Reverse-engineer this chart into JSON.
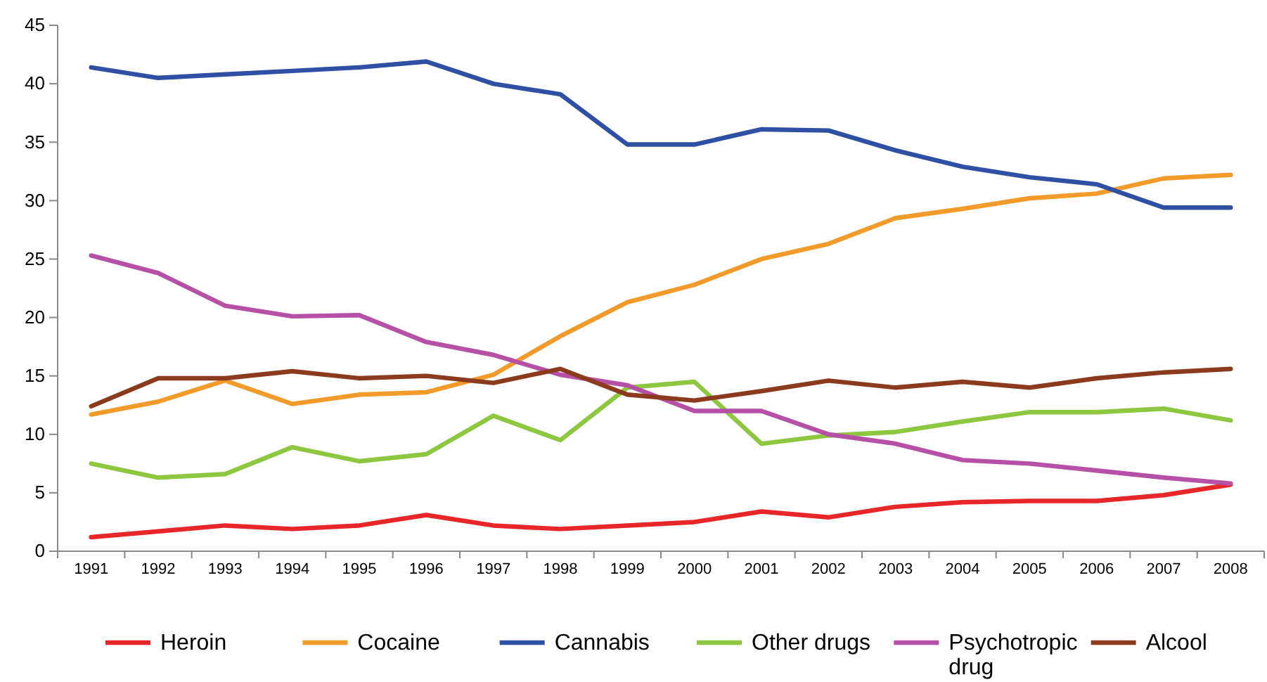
{
  "chart_data": {
    "type": "line",
    "categories": [
      "1991",
      "1992",
      "1993",
      "1994",
      "1995",
      "1996",
      "1997",
      "1998",
      "1999",
      "2000",
      "2001",
      "2002",
      "2003",
      "2004",
      "2005",
      "2006",
      "2007",
      "2008"
    ],
    "ylim": [
      0,
      45
    ],
    "yticks": [
      0,
      5,
      10,
      15,
      20,
      25,
      30,
      35,
      40,
      45
    ],
    "grid": false,
    "legend": "bottom",
    "marker": "none",
    "line_style": "solid",
    "series": [
      {
        "name": "Heroin",
        "color": "#e8262a",
        "values": [
          1.2,
          1.7,
          2.2,
          1.9,
          2.2,
          3.1,
          2.2,
          1.9,
          2.2,
          2.5,
          3.4,
          2.9,
          3.8,
          4.2,
          4.3,
          4.3,
          4.8,
          5.7
        ]
      },
      {
        "name": "Cocaine",
        "color": "#f39b2a",
        "values": [
          11.7,
          12.8,
          14.6,
          12.6,
          13.4,
          13.6,
          15.1,
          18.4,
          21.3,
          22.8,
          25.0,
          26.3,
          28.5,
          29.3,
          30.2,
          30.6,
          31.9,
          32.2
        ]
      },
      {
        "name": "Cannabis",
        "color": "#2e4fa3",
        "values": [
          41.4,
          40.5,
          40.8,
          41.1,
          41.4,
          41.9,
          40.0,
          39.1,
          34.8,
          34.8,
          36.1,
          36.0,
          34.3,
          32.9,
          32.0,
          31.4,
          29.4,
          29.4
        ]
      },
      {
        "name": "Other drugs",
        "color": "#8dc63f",
        "values": [
          7.5,
          6.3,
          6.6,
          8.9,
          7.7,
          8.3,
          11.6,
          9.5,
          14.0,
          14.5,
          9.2,
          9.9,
          10.2,
          11.1,
          11.9,
          11.9,
          12.2,
          11.2
        ]
      },
      {
        "name": "Psychotropic drug",
        "color": "#b64fa6",
        "values": [
          25.3,
          23.8,
          21.0,
          20.1,
          20.2,
          17.9,
          16.8,
          15.1,
          14.2,
          12.0,
          12.0,
          10.0,
          9.2,
          7.8,
          7.5,
          6.9,
          6.3,
          5.8
        ]
      },
      {
        "name": "Alcool",
        "color": "#8b3a1e",
        "values": [
          12.4,
          14.8,
          14.8,
          15.4,
          14.8,
          15.0,
          14.4,
          15.6,
          13.4,
          12.9,
          13.7,
          14.6,
          14.0,
          14.5,
          14.0,
          14.8,
          15.3,
          15.6
        ]
      }
    ]
  }
}
